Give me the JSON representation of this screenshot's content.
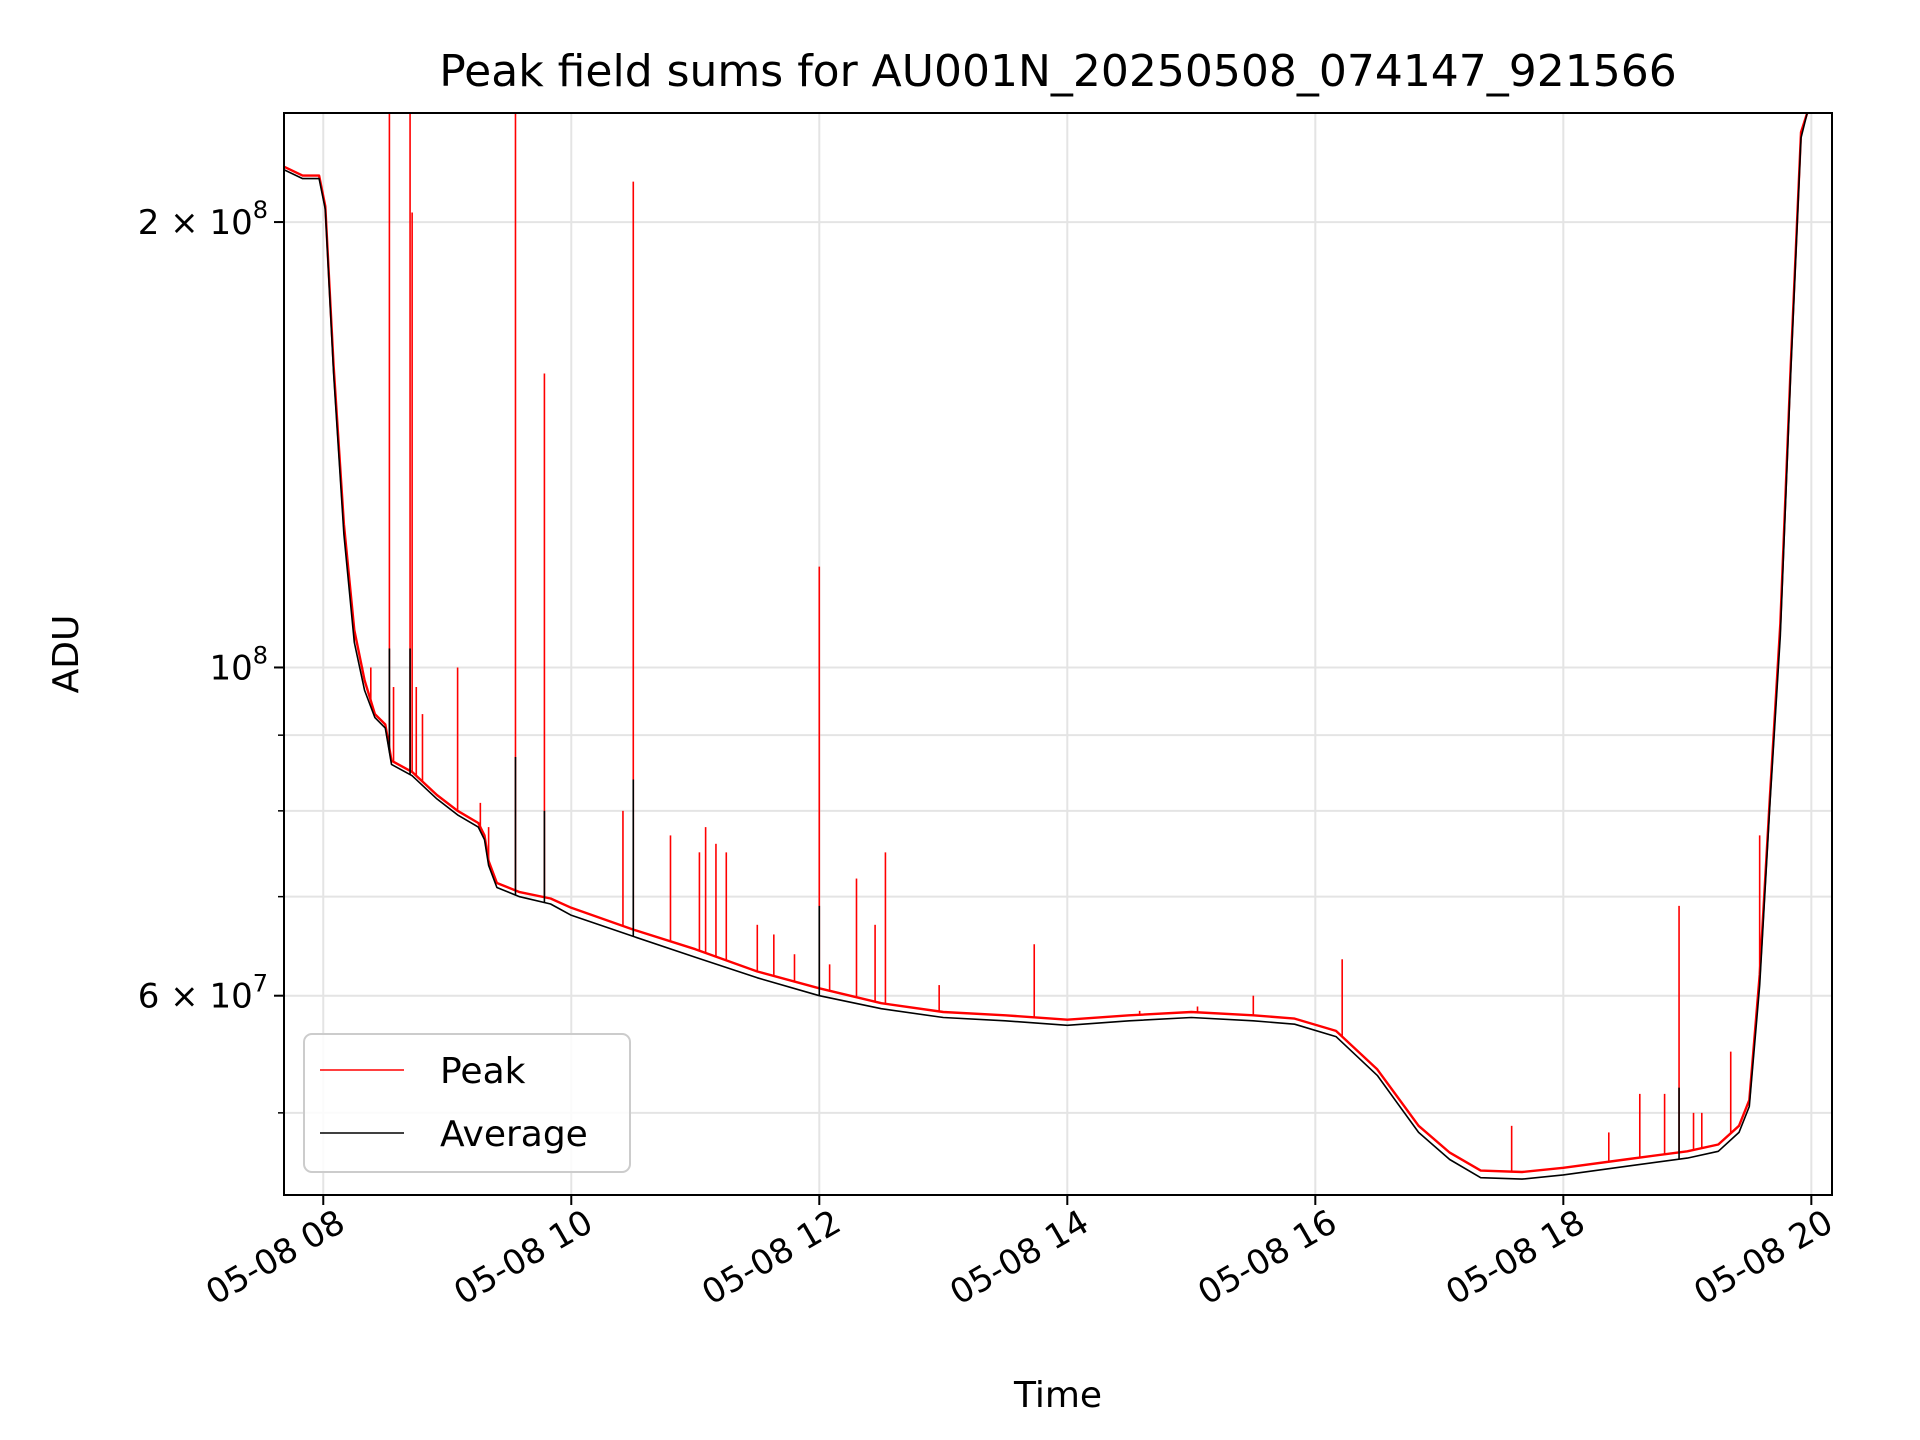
{
  "chart_data": {
    "type": "line",
    "title": "Peak field sums for AU001N_20250508_074147_921566",
    "xlabel": "Time",
    "ylabel": "ADU",
    "yscale": "log",
    "xlim": [
      "05-08 07:41",
      "05-08 20:10"
    ],
    "ylim": [
      44000000,
      237000000
    ],
    "grid": true,
    "legend_position": "lower-left",
    "x_ticks": [
      "05-08 08",
      "05-08 10",
      "05-08 12",
      "05-08 14",
      "05-08 16",
      "05-08 18",
      "05-08 20"
    ],
    "y_ticks": [
      {
        "value": 200000000,
        "mantissa": "2",
        "exp": "8"
      },
      {
        "value": 100000000,
        "mantissa": "",
        "exp": "8"
      },
      {
        "value": 60000000,
        "mantissa": "6",
        "exp": "7"
      }
    ],
    "series": [
      {
        "name": "Peak",
        "color": "#ff0000",
        "baseline": [
          [
            "05-08 07:41",
            218000000
          ],
          [
            "05-08 07:50",
            215000000
          ],
          [
            "05-08 07:58",
            215000000
          ],
          [
            "05-08 08:01",
            205000000
          ],
          [
            "05-08 08:05",
            160000000
          ],
          [
            "05-08 08:10",
            125000000
          ],
          [
            "05-08 08:15",
            106000000
          ],
          [
            "05-08 08:20",
            98000000
          ],
          [
            "05-08 08:25",
            93000000
          ],
          [
            "05-08 08:30",
            91500000
          ],
          [
            "05-08 08:33",
            86500000
          ],
          [
            "05-08 08:43",
            85000000
          ],
          [
            "05-08 08:55",
            82000000
          ],
          [
            "05-08 09:05",
            80000000
          ],
          [
            "05-08 09:15",
            78500000
          ],
          [
            "05-08 09:18",
            77000000
          ],
          [
            "05-08 09:20",
            74000000
          ],
          [
            "05-08 09:24",
            71500000
          ],
          [
            "05-08 09:35",
            70500000
          ],
          [
            "05-08 09:50",
            69800000
          ],
          [
            "05-08 10:00",
            68800000
          ],
          [
            "05-08 10:30",
            66500000
          ],
          [
            "05-08 11:00",
            64500000
          ],
          [
            "05-08 11:30",
            62300000
          ],
          [
            "05-08 12:00",
            60700000
          ],
          [
            "05-08 12:30",
            59300000
          ],
          [
            "05-08 13:00",
            58500000
          ],
          [
            "05-08 13:30",
            58200000
          ],
          [
            "05-08 14:00",
            57800000
          ],
          [
            "05-08 14:30",
            58200000
          ],
          [
            "05-08 15:00",
            58500000
          ],
          [
            "05-08 15:30",
            58200000
          ],
          [
            "05-08 15:50",
            57900000
          ],
          [
            "05-08 16:10",
            56800000
          ],
          [
            "05-08 16:30",
            53500000
          ],
          [
            "05-08 16:50",
            49000000
          ],
          [
            "05-08 17:05",
            47000000
          ],
          [
            "05-08 17:20",
            45700000
          ],
          [
            "05-08 17:40",
            45600000
          ],
          [
            "05-08 18:00",
            45900000
          ],
          [
            "05-08 18:30",
            46500000
          ],
          [
            "05-08 19:00",
            47100000
          ],
          [
            "05-08 19:15",
            47600000
          ],
          [
            "05-08 19:25",
            49000000
          ],
          [
            "05-08 19:30",
            51000000
          ],
          [
            "05-08 19:35",
            62000000
          ],
          [
            "05-08 19:40",
            82000000
          ],
          [
            "05-08 19:45",
            107000000
          ],
          [
            "05-08 19:50",
            160000000
          ],
          [
            "05-08 19:55",
            230000000
          ],
          [
            "05-08 19:58",
            237000000
          ]
        ],
        "spikes": [
          [
            "05-08 08:15",
            104000000
          ],
          [
            "05-08 08:19",
            100000000
          ],
          [
            "05-08 08:23",
            100000000
          ],
          [
            "05-08 08:32",
            237000000
          ],
          [
            "05-08 08:34",
            97000000
          ],
          [
            "05-08 08:42",
            237000000
          ],
          [
            "05-08 08:43",
            203000000
          ],
          [
            "05-08 08:45",
            97000000
          ],
          [
            "05-08 08:48",
            93000000
          ],
          [
            "05-08 09:05",
            100000000
          ],
          [
            "05-08 09:16",
            81000000
          ],
          [
            "05-08 09:20",
            78000000
          ],
          [
            "05-08 09:33",
            237000000
          ],
          [
            "05-08 09:47",
            158000000
          ],
          [
            "05-08 10:25",
            80000000
          ],
          [
            "05-08 10:30",
            213000000
          ],
          [
            "05-08 10:48",
            77000000
          ],
          [
            "05-08 11:02",
            75000000
          ],
          [
            "05-08 11:05",
            78000000
          ],
          [
            "05-08 11:10",
            76000000
          ],
          [
            "05-08 11:15",
            75000000
          ],
          [
            "05-08 11:30",
            67000000
          ],
          [
            "05-08 11:38",
            66000000
          ],
          [
            "05-08 11:48",
            64000000
          ],
          [
            "05-08 12:00",
            117000000
          ],
          [
            "05-08 12:05",
            63000000
          ],
          [
            "05-08 12:18",
            72000000
          ],
          [
            "05-08 12:27",
            67000000
          ],
          [
            "05-08 12:32",
            75000000
          ],
          [
            "05-08 12:58",
            61000000
          ],
          [
            "05-08 13:44",
            65000000
          ],
          [
            "05-08 14:35",
            58600000
          ],
          [
            "05-08 15:03",
            59000000
          ],
          [
            "05-08 15:30",
            60000000
          ],
          [
            "05-08 16:13",
            63500000
          ],
          [
            "05-08 17:35",
            49000000
          ],
          [
            "05-08 18:22",
            48500000
          ],
          [
            "05-08 18:37",
            51500000
          ],
          [
            "05-08 18:49",
            51500000
          ],
          [
            "05-08 18:56",
            69000000
          ],
          [
            "05-08 19:03",
            50000000
          ],
          [
            "05-08 19:07",
            50000000
          ],
          [
            "05-08 19:21",
            55000000
          ],
          [
            "05-08 19:35",
            77000000
          ]
        ]
      },
      {
        "name": "Average",
        "color": "#000000",
        "baseline": [
          [
            "05-08 07:41",
            217000000
          ],
          [
            "05-08 07:50",
            214000000
          ],
          [
            "05-08 07:58",
            214000000
          ],
          [
            "05-08 08:01",
            204000000
          ],
          [
            "05-08 08:05",
            158000000
          ],
          [
            "05-08 08:10",
            123000000
          ],
          [
            "05-08 08:15",
            104000000
          ],
          [
            "05-08 08:20",
            96500000
          ],
          [
            "05-08 08:25",
            92500000
          ],
          [
            "05-08 08:30",
            91000000
          ],
          [
            "05-08 08:33",
            86000000
          ],
          [
            "05-08 08:43",
            84500000
          ],
          [
            "05-08 08:55",
            81500000
          ],
          [
            "05-08 09:05",
            79500000
          ],
          [
            "05-08 09:15",
            78000000
          ],
          [
            "05-08 09:18",
            76500000
          ],
          [
            "05-08 09:20",
            73500000
          ],
          [
            "05-08 09:24",
            71000000
          ],
          [
            "05-08 09:35",
            70000000
          ],
          [
            "05-08 09:50",
            69200000
          ],
          [
            "05-08 10:00",
            68000000
          ],
          [
            "05-08 10:30",
            65800000
          ],
          [
            "05-08 11:00",
            63700000
          ],
          [
            "05-08 11:30",
            61700000
          ],
          [
            "05-08 12:00",
            60000000
          ],
          [
            "05-08 12:30",
            58800000
          ],
          [
            "05-08 13:00",
            58000000
          ],
          [
            "05-08 13:30",
            57700000
          ],
          [
            "05-08 14:00",
            57300000
          ],
          [
            "05-08 14:30",
            57700000
          ],
          [
            "05-08 15:00",
            58000000
          ],
          [
            "05-08 15:30",
            57700000
          ],
          [
            "05-08 15:50",
            57400000
          ],
          [
            "05-08 16:10",
            56300000
          ],
          [
            "05-08 16:30",
            53000000
          ],
          [
            "05-08 16:50",
            48500000
          ],
          [
            "05-08 17:05",
            46500000
          ],
          [
            "05-08 17:20",
            45200000
          ],
          [
            "05-08 17:40",
            45100000
          ],
          [
            "05-08 18:00",
            45400000
          ],
          [
            "05-08 18:30",
            46000000
          ],
          [
            "05-08 19:00",
            46600000
          ],
          [
            "05-08 19:15",
            47100000
          ],
          [
            "05-08 19:25",
            48500000
          ],
          [
            "05-08 19:30",
            50500000
          ],
          [
            "05-08 19:35",
            61000000
          ],
          [
            "05-08 19:40",
            81000000
          ],
          [
            "05-08 19:45",
            105000000
          ],
          [
            "05-08 19:50",
            158000000
          ],
          [
            "05-08 19:55",
            228000000
          ],
          [
            "05-08 19:58",
            237000000
          ]
        ],
        "spikes": [
          [
            "05-08 08:32",
            103000000
          ],
          [
            "05-08 08:42",
            103000000
          ],
          [
            "05-08 09:33",
            87000000
          ],
          [
            "05-08 09:47",
            80000000
          ],
          [
            "05-08 10:30",
            84000000
          ],
          [
            "05-08 12:00",
            69000000
          ],
          [
            "05-08 18:56",
            52000000
          ]
        ]
      }
    ]
  }
}
